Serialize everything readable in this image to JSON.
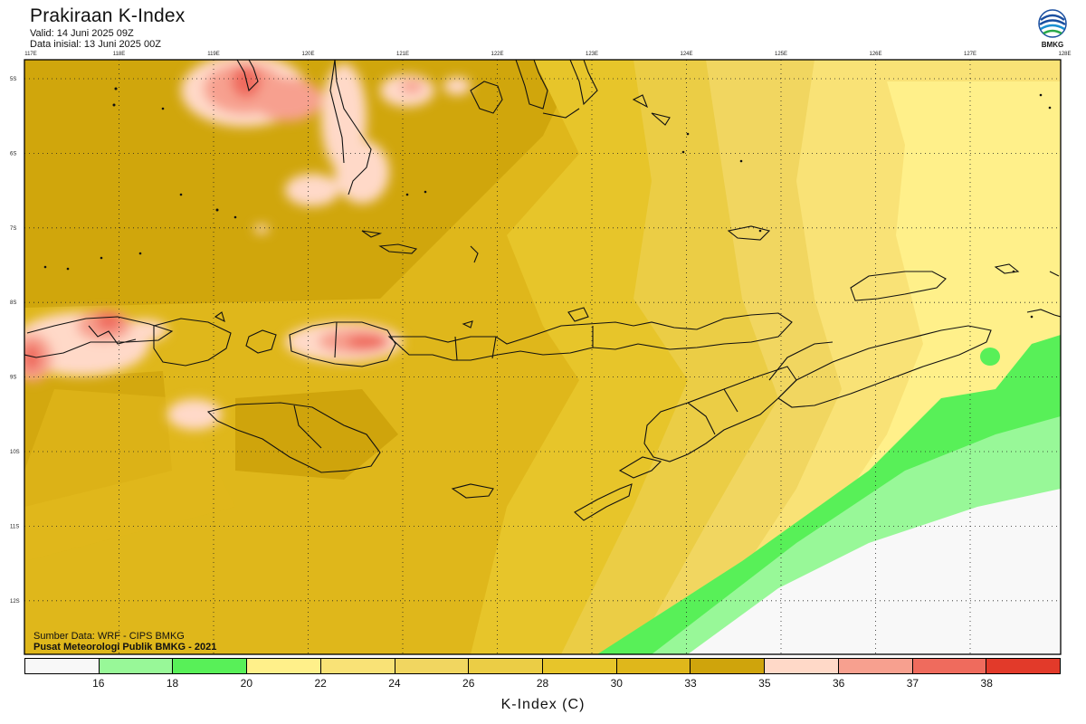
{
  "header": {
    "title": "Prakiraan K-Index",
    "valid": "Valid: 14 Juni 2025 09Z",
    "initial": "Data inisial: 13 Juni 2025 00Z"
  },
  "logo": {
    "text": "BMKG"
  },
  "map": {
    "lon_ticks": [
      "117E",
      "118E",
      "119E",
      "120E",
      "121E",
      "122E",
      "123E",
      "124E",
      "125E",
      "126E",
      "127E",
      "128E"
    ],
    "lat_ticks": [
      "5S",
      "6S",
      "7S",
      "8S",
      "9S",
      "10S",
      "11S",
      "12S"
    ],
    "credit_source": "Sumber Data: WRF - CIPS BMKG",
    "credit_center": "Pusat Meteorologi Publik BMKG - 2021"
  },
  "legend": {
    "colors": [
      "#f8f8f8",
      "#98f898",
      "#58f058",
      "#fff08a",
      "#f9e276",
      "#f1d660",
      "#ebcd45",
      "#e7c52a",
      "#dfb71b",
      "#cfa40c",
      "#ffd9c8",
      "#f7a08f",
      "#ef6b5d",
      "#e23a2a"
    ],
    "labels": [
      "16",
      "18",
      "20",
      "22",
      "24",
      "26",
      "28",
      "30",
      "33",
      "35",
      "36",
      "37",
      "38"
    ],
    "unit_label": "K-Index (C)"
  }
}
